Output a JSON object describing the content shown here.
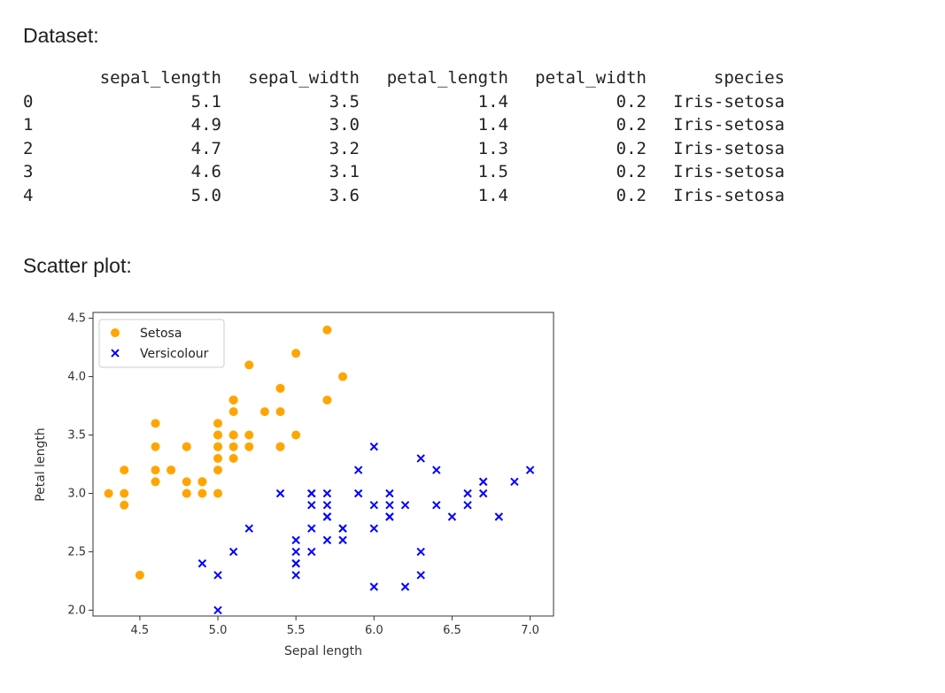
{
  "headings": {
    "dataset": "Dataset:",
    "scatter": "Scatter plot:"
  },
  "table": {
    "columns": [
      "sepal_length",
      "sepal_width",
      "petal_length",
      "petal_width",
      "species"
    ],
    "rows": [
      {
        "index": "0",
        "cells": [
          "5.1",
          "3.5",
          "1.4",
          "0.2",
          "Iris-setosa"
        ]
      },
      {
        "index": "1",
        "cells": [
          "4.9",
          "3.0",
          "1.4",
          "0.2",
          "Iris-setosa"
        ]
      },
      {
        "index": "2",
        "cells": [
          "4.7",
          "3.2",
          "1.3",
          "0.2",
          "Iris-setosa"
        ]
      },
      {
        "index": "3",
        "cells": [
          "4.6",
          "3.1",
          "1.5",
          "0.2",
          "Iris-setosa"
        ]
      },
      {
        "index": "4",
        "cells": [
          "5.0",
          "3.6",
          "1.4",
          "0.2",
          "Iris-setosa"
        ]
      }
    ]
  },
  "chart_data": {
    "type": "scatter",
    "title": "",
    "xlabel": "Sepal length",
    "ylabel": "Petal length",
    "xlim": [
      4.2,
      7.15
    ],
    "ylim": [
      1.95,
      4.55
    ],
    "xticks": [
      "4.5",
      "5.0",
      "5.5",
      "6.0",
      "6.5",
      "7.0"
    ],
    "yticks": [
      "2.0",
      "2.5",
      "3.0",
      "3.5",
      "4.0",
      "4.5"
    ],
    "grid": false,
    "legend_position": "top-left",
    "series": [
      {
        "name": "Setosa",
        "marker": "circle",
        "color": "#FFA500",
        "points": [
          [
            5.1,
            3.5
          ],
          [
            4.9,
            3.0
          ],
          [
            4.7,
            3.2
          ],
          [
            4.6,
            3.1
          ],
          [
            5.0,
            3.6
          ],
          [
            5.4,
            3.9
          ],
          [
            4.6,
            3.4
          ],
          [
            5.0,
            3.4
          ],
          [
            4.4,
            2.9
          ],
          [
            4.9,
            3.1
          ],
          [
            5.4,
            3.7
          ],
          [
            4.8,
            3.4
          ],
          [
            4.8,
            3.0
          ],
          [
            4.3,
            3.0
          ],
          [
            5.8,
            4.0
          ],
          [
            5.7,
            4.4
          ],
          [
            5.4,
            3.9
          ],
          [
            5.1,
            3.5
          ],
          [
            5.7,
            3.8
          ],
          [
            5.1,
            3.8
          ],
          [
            5.4,
            3.4
          ],
          [
            5.1,
            3.7
          ],
          [
            4.6,
            3.6
          ],
          [
            5.1,
            3.3
          ],
          [
            4.8,
            3.4
          ],
          [
            5.0,
            3.0
          ],
          [
            5.0,
            3.4
          ],
          [
            5.2,
            3.5
          ],
          [
            5.2,
            3.4
          ],
          [
            4.7,
            3.2
          ],
          [
            4.8,
            3.1
          ],
          [
            5.4,
            3.4
          ],
          [
            5.2,
            4.1
          ],
          [
            5.5,
            4.2
          ],
          [
            4.9,
            3.1
          ],
          [
            5.0,
            3.2
          ],
          [
            5.5,
            3.5
          ],
          [
            4.9,
            3.1
          ],
          [
            4.4,
            3.0
          ],
          [
            5.1,
            3.4
          ],
          [
            5.0,
            3.5
          ],
          [
            4.5,
            2.3
          ],
          [
            4.4,
            3.2
          ],
          [
            5.0,
            3.5
          ],
          [
            5.1,
            3.8
          ],
          [
            4.8,
            3.0
          ],
          [
            5.1,
            3.8
          ],
          [
            4.6,
            3.2
          ],
          [
            5.3,
            3.7
          ],
          [
            5.0,
            3.3
          ]
        ]
      },
      {
        "name": "Versicolour",
        "marker": "x",
        "color": "#0000FF",
        "points": [
          [
            7.0,
            3.2
          ],
          [
            6.4,
            3.2
          ],
          [
            6.9,
            3.1
          ],
          [
            5.5,
            2.3
          ],
          [
            6.5,
            2.8
          ],
          [
            5.7,
            2.8
          ],
          [
            6.3,
            3.3
          ],
          [
            4.9,
            2.4
          ],
          [
            6.6,
            2.9
          ],
          [
            5.2,
            2.7
          ],
          [
            5.0,
            2.0
          ],
          [
            5.9,
            3.0
          ],
          [
            6.0,
            2.2
          ],
          [
            6.1,
            2.9
          ],
          [
            5.6,
            2.9
          ],
          [
            6.7,
            3.1
          ],
          [
            5.6,
            3.0
          ],
          [
            5.8,
            2.7
          ],
          [
            6.2,
            2.2
          ],
          [
            5.6,
            2.5
          ],
          [
            5.9,
            3.2
          ],
          [
            6.1,
            2.8
          ],
          [
            6.3,
            2.5
          ],
          [
            6.1,
            2.8
          ],
          [
            6.4,
            2.9
          ],
          [
            6.6,
            3.0
          ],
          [
            6.8,
            2.8
          ],
          [
            6.7,
            3.0
          ],
          [
            6.0,
            2.9
          ],
          [
            5.7,
            2.6
          ],
          [
            5.5,
            2.4
          ],
          [
            5.5,
            2.4
          ],
          [
            5.8,
            2.7
          ],
          [
            6.0,
            2.7
          ],
          [
            5.4,
            3.0
          ],
          [
            6.0,
            3.4
          ],
          [
            6.7,
            3.1
          ],
          [
            6.3,
            2.3
          ],
          [
            5.6,
            3.0
          ],
          [
            5.5,
            2.5
          ],
          [
            5.5,
            2.6
          ],
          [
            6.1,
            3.0
          ],
          [
            5.8,
            2.6
          ],
          [
            5.0,
            2.3
          ],
          [
            5.6,
            2.7
          ],
          [
            5.7,
            3.0
          ],
          [
            5.7,
            2.9
          ],
          [
            6.2,
            2.9
          ],
          [
            5.1,
            2.5
          ],
          [
            5.7,
            2.8
          ]
        ]
      }
    ]
  }
}
